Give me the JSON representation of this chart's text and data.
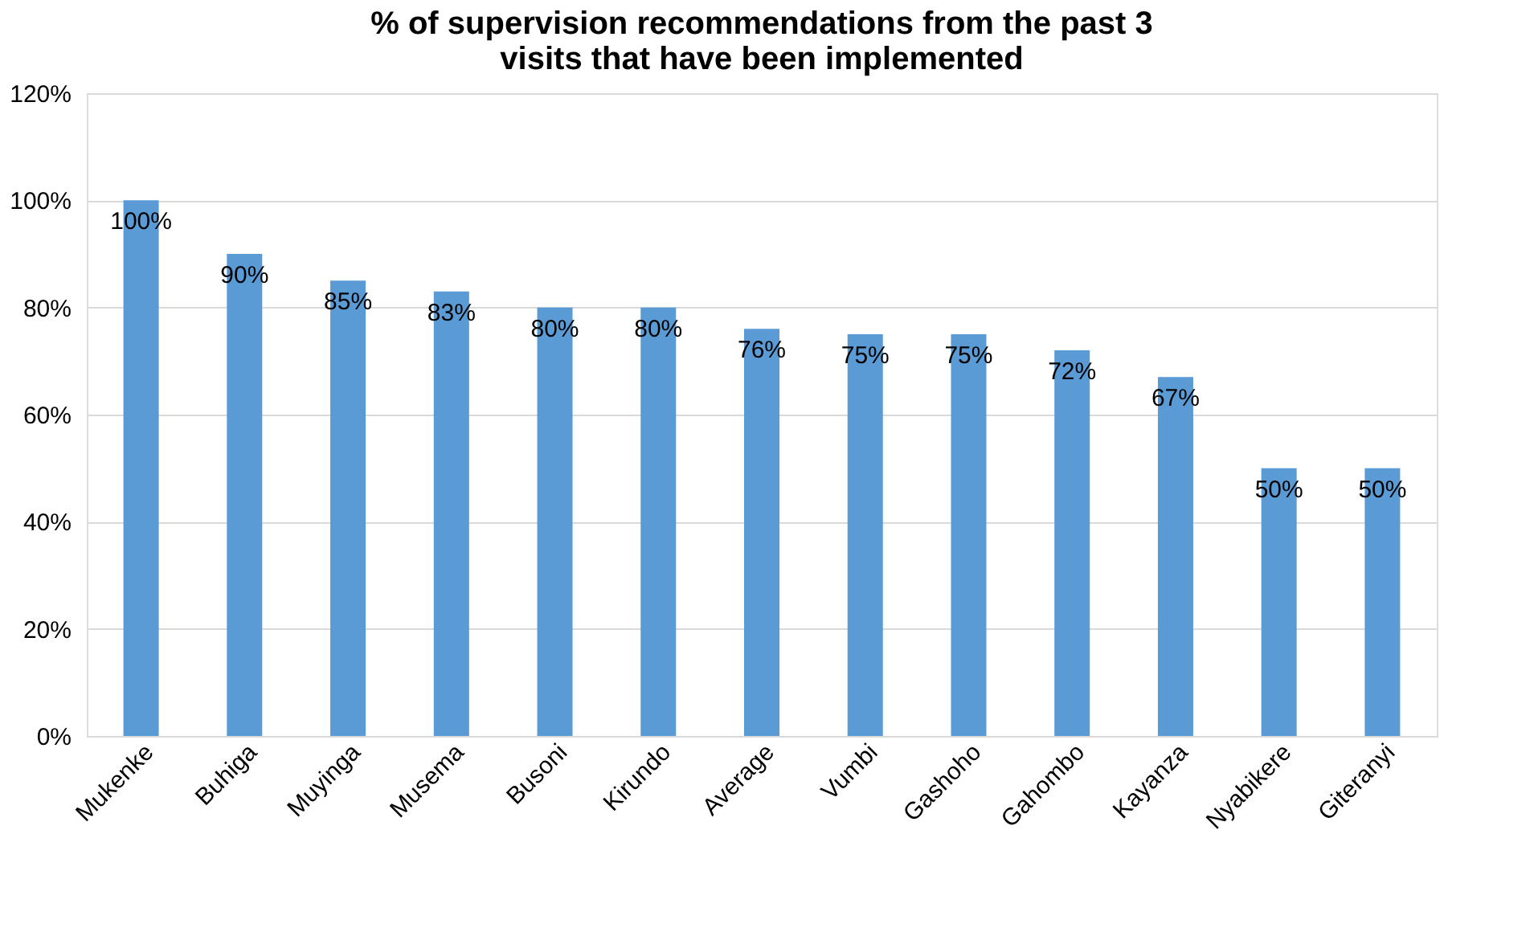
{
  "chart_data": {
    "type": "bar",
    "title": [
      "% of supervision recommendations from the past 3",
      "visits that have been implemented"
    ],
    "categories": [
      "Mukenke",
      "Buhiga",
      "Muyinga",
      "Musema",
      "Busoni",
      "Kirundo",
      "Average",
      "Vumbi",
      "Gashoho",
      "Gahombo",
      "Kayanza",
      "Nyabikere",
      "Giteranyi"
    ],
    "values": [
      100,
      90,
      85,
      83,
      80,
      80,
      76,
      75,
      75,
      72,
      67,
      50,
      50
    ],
    "value_labels": [
      "100%",
      "90%",
      "85%",
      "83%",
      "80%",
      "80%",
      "76%",
      "75%",
      "75%",
      "72%",
      "67%",
      "50%",
      "50%"
    ],
    "color": "#5b9bd5",
    "ylim": [
      0,
      120
    ],
    "yticks": [
      {
        "value": 0,
        "label": "0%"
      },
      {
        "value": 20,
        "label": "20%"
      },
      {
        "value": 40,
        "label": "40%"
      },
      {
        "value": 60,
        "label": "60%"
      },
      {
        "value": 80,
        "label": "80%"
      },
      {
        "value": 100,
        "label": "100%"
      },
      {
        "value": 120,
        "label": "120%"
      }
    ],
    "grid": "y"
  }
}
